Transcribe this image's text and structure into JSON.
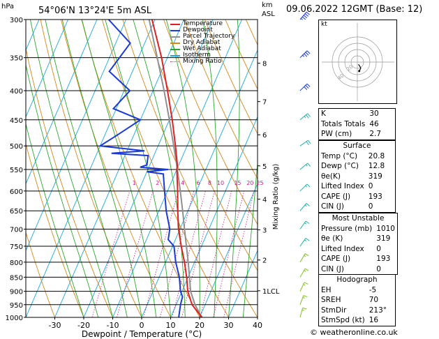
{
  "header": {
    "location": "54°06'N  13°24'E  5m  ASL",
    "datetime": "09.06.2022  12GMT  (Base: 12)",
    "units_hpa": "hPa",
    "units_km": "km",
    "units_asl": "ASL"
  },
  "chart_data": {
    "type": "skewt",
    "xlabel": "Dewpoint / Temperature (°C)",
    "y2label": "Mixing Ratio (g/kg)",
    "pressure_ticks": [
      300,
      350,
      400,
      450,
      500,
      550,
      600,
      650,
      700,
      750,
      800,
      850,
      900,
      950,
      1000
    ],
    "temp_ticks": [
      -30,
      -20,
      -10,
      0,
      10,
      20,
      30,
      40
    ],
    "xlim": [
      -40,
      40
    ],
    "ylim_hpa": [
      1000,
      300
    ],
    "km_ticks": [
      {
        "label": "8",
        "p": 358
      },
      {
        "label": "7",
        "p": 418
      },
      {
        "label": "6",
        "p": 478
      },
      {
        "label": "5",
        "p": 542
      },
      {
        "label": "4",
        "p": 620
      },
      {
        "label": "3",
        "p": 702
      },
      {
        "label": "2",
        "p": 793
      },
      {
        "label": "1LCL",
        "p": 898
      }
    ],
    "mixing_ratio_labels": [
      "1",
      "2",
      "4",
      "6",
      "8",
      "10",
      "15",
      "20",
      "25"
    ],
    "mixing_ratios": [
      1,
      2,
      4,
      6,
      8,
      10,
      15,
      20,
      25
    ],
    "legend": [
      {
        "name": "Temperature",
        "color": "#e02020"
      },
      {
        "name": "Dewpoint",
        "color": "#1a3ad8"
      },
      {
        "name": "Parcel Trajectory",
        "color": "#909090"
      },
      {
        "name": "Dry Adiabat",
        "color": "#d4881a"
      },
      {
        "name": "Wet Adiabat",
        "color": "#2aa82a"
      },
      {
        "name": "Isotherm",
        "color": "#1aa8e0"
      },
      {
        "name": "Mixing Ratio",
        "color": "#d01888"
      }
    ],
    "temperature": [
      [
        1000,
        20.8
      ],
      [
        950,
        15.5
      ],
      [
        900,
        12.0
      ],
      [
        850,
        9.5
      ],
      [
        800,
        6.5
      ],
      [
        750,
        3.0
      ],
      [
        700,
        -0.5
      ],
      [
        650,
        -3.5
      ],
      [
        600,
        -6.5
      ],
      [
        550,
        -10.0
      ],
      [
        540,
        -10.5
      ],
      [
        500,
        -14.0
      ],
      [
        450,
        -19.0
      ],
      [
        400,
        -25.0
      ],
      [
        350,
        -32.0
      ],
      [
        300,
        -41.0
      ]
    ],
    "dewpoint": [
      [
        1000,
        12.8
      ],
      [
        950,
        11.5
      ],
      [
        920,
        11.0
      ],
      [
        900,
        9.5
      ],
      [
        850,
        7.0
      ],
      [
        800,
        3.5
      ],
      [
        750,
        0.5
      ],
      [
        730,
        -2.5
      ],
      [
        700,
        -3.5
      ],
      [
        650,
        -7.5
      ],
      [
        600,
        -11.0
      ],
      [
        560,
        -14.0
      ],
      [
        555,
        -20.0
      ],
      [
        550,
        -13.0
      ],
      [
        545,
        -23.0
      ],
      [
        540,
        -21.0
      ],
      [
        520,
        -22.0
      ],
      [
        515,
        -35.0
      ],
      [
        510,
        -24.0
      ],
      [
        500,
        -40.0
      ],
      [
        480,
        -36.0
      ],
      [
        450,
        -30.0
      ],
      [
        430,
        -41.0
      ],
      [
        400,
        -38.0
      ],
      [
        370,
        -48.0
      ],
      [
        330,
        -45.0
      ],
      [
        300,
        -56.0
      ]
    ],
    "parcel": [
      [
        1000,
        20.8
      ],
      [
        950,
        16.5
      ],
      [
        900,
        13.0
      ],
      [
        850,
        10.5
      ],
      [
        800,
        7.8
      ],
      [
        750,
        4.8
      ],
      [
        700,
        1.6
      ],
      [
        650,
        -1.8
      ],
      [
        600,
        -5.6
      ],
      [
        550,
        -9.8
      ],
      [
        500,
        -14.6
      ],
      [
        450,
        -20.0
      ],
      [
        400,
        -26.2
      ],
      [
        350,
        -33.5
      ],
      [
        300,
        -42.0
      ]
    ],
    "wind_barbs": [
      {
        "p": 300,
        "dir": 220,
        "kt": 45
      },
      {
        "p": 350,
        "dir": 225,
        "kt": 35
      },
      {
        "p": 400,
        "dir": 225,
        "kt": 30
      },
      {
        "p": 450,
        "dir": 230,
        "kt": 25
      },
      {
        "p": 500,
        "dir": 235,
        "kt": 20
      },
      {
        "p": 550,
        "dir": 230,
        "kt": 15
      },
      {
        "p": 600,
        "dir": 225,
        "kt": 15
      },
      {
        "p": 650,
        "dir": 220,
        "kt": 15
      },
      {
        "p": 700,
        "dir": 215,
        "kt": 15
      },
      {
        "p": 750,
        "dir": 215,
        "kt": 15
      },
      {
        "p": 800,
        "dir": 210,
        "kt": 15
      },
      {
        "p": 850,
        "dir": 210,
        "kt": 15
      },
      {
        "p": 900,
        "dir": 205,
        "kt": 15
      },
      {
        "p": 950,
        "dir": 200,
        "kt": 15
      },
      {
        "p": 1000,
        "dir": 195,
        "kt": 15
      }
    ]
  },
  "hodograph": {
    "units": "kt",
    "ring_labels": [
      "20",
      "40"
    ],
    "trace_kt": [
      [
        5,
        2
      ],
      [
        7,
        6
      ],
      [
        9,
        10
      ],
      [
        7,
        14
      ],
      [
        5,
        17
      ],
      [
        3,
        20
      ]
    ]
  },
  "indices": {
    "top": [
      {
        "label": "K",
        "value": "30"
      },
      {
        "label": "Totals Totals",
        "value": "46"
      },
      {
        "label": "PW (cm)",
        "value": "2.7"
      }
    ],
    "surface": {
      "title": "Surface",
      "rows": [
        {
          "label": "Temp (°C)",
          "value": "20.8"
        },
        {
          "label": "Dewp (°C)",
          "value": "12.8"
        },
        {
          "label": "θe(K)",
          "value": "319"
        },
        {
          "label": "Lifted Index",
          "value": "0"
        },
        {
          "label": "CAPE (J)",
          "value": "193"
        },
        {
          "label": "CIN (J)",
          "value": "0"
        }
      ]
    },
    "most_unstable": {
      "title": "Most Unstable",
      "rows": [
        {
          "label": "Pressure (mb)",
          "value": "1010"
        },
        {
          "label": "θe (K)",
          "value": "319"
        },
        {
          "label": "Lifted Index",
          "value": "0"
        },
        {
          "label": "CAPE (J)",
          "value": "193"
        },
        {
          "label": "CIN (J)",
          "value": "0"
        }
      ]
    },
    "hodograph": {
      "title": "Hodograph",
      "rows": [
        {
          "label": "EH",
          "value": "-5"
        },
        {
          "label": "SREH",
          "value": "70"
        },
        {
          "label": "StmDir",
          "value": "213°"
        },
        {
          "label": "StmSpd (kt)",
          "value": "16"
        }
      ]
    }
  },
  "footer": {
    "copyright": "© weatheronline.co.uk"
  },
  "colors": {
    "temperature": "#e02020",
    "dewpoint": "#1a3ad8",
    "parcel": "#909090",
    "dry_adiabat": "#d4881a",
    "wet_adiabat": "#2aa82a",
    "isotherm": "#1aa8e0",
    "mixing_ratio": "#d01888",
    "barbs_high": "#1a3ad8",
    "barbs_mid": "#1ab0a8",
    "barbs_low": "#80c020"
  }
}
